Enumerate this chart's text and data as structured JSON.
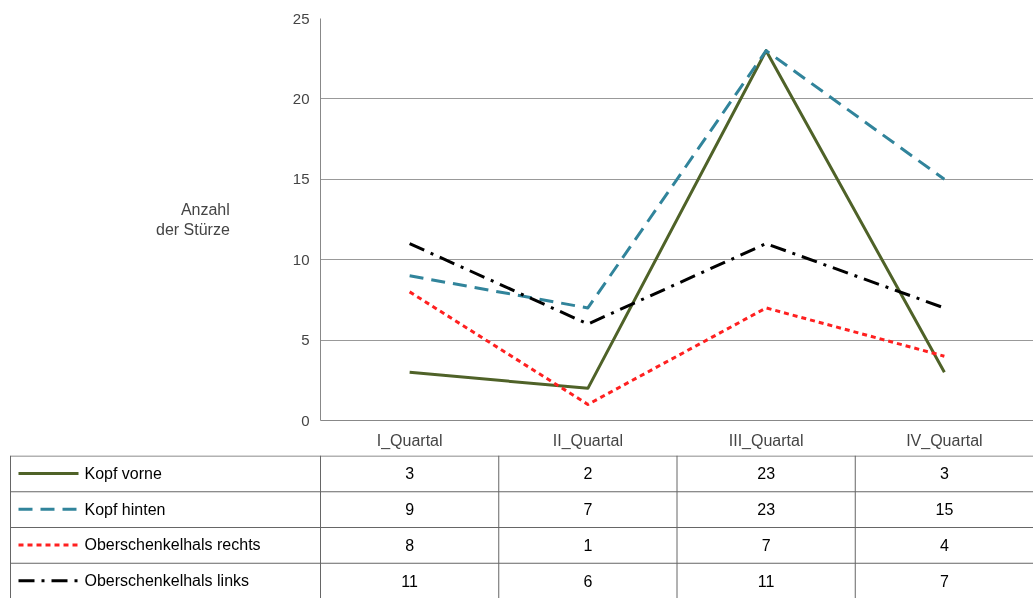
{
  "chart_data": {
    "type": "line",
    "ylabel": "Anzahl der Stürze",
    "categories": [
      "I_Quartal",
      "II_Quartal",
      "III_Quartal",
      "IV_Quartal"
    ],
    "series": [
      {
        "name": "Kopf vorne",
        "color": "#4f6228",
        "line_style": "solid",
        "values": [
          3,
          2,
          23,
          3
        ]
      },
      {
        "name": "Kopf hinten",
        "color": "#31849b",
        "line_style": "dashed",
        "values": [
          9,
          7,
          23,
          15
        ]
      },
      {
        "name": "Oberschenkelhals rechts",
        "color": "#ff2020",
        "line_style": "dotted",
        "values": [
          8,
          1,
          7,
          4
        ]
      },
      {
        "name": "Oberschenkelhals links",
        "color": "#000000",
        "line_style": "dashdot",
        "values": [
          11,
          6,
          11,
          7
        ]
      }
    ],
    "ylim": [
      0,
      25
    ],
    "yticks": [
      0,
      5,
      10,
      15,
      20,
      25
    ],
    "grid": "y",
    "data_labels": true,
    "legend": "bottom left"
  }
}
